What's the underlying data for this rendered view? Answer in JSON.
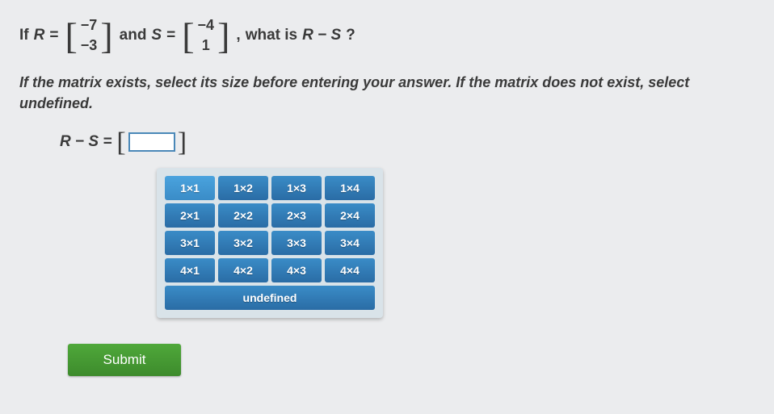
{
  "question": {
    "if_text": "If",
    "var_r": "R",
    "eq": "=",
    "matrix_r": [
      "−7",
      "−3"
    ],
    "and_text": "and",
    "var_s": "S",
    "matrix_s": [
      "−4",
      "1"
    ],
    "comma": ",",
    "what_text": "what is",
    "expr": "R − S",
    "qmark": "?"
  },
  "instruction": "If the matrix exists, select its size before entering your answer. If the matrix does not exist, select undefined.",
  "answer": {
    "label": "R − S =",
    "input_value": ""
  },
  "size_selector": {
    "rows": [
      [
        "1×1",
        "1×2",
        "1×3",
        "1×4"
      ],
      [
        "2×1",
        "2×2",
        "2×3",
        "2×4"
      ],
      [
        "3×1",
        "3×2",
        "3×3",
        "3×4"
      ],
      [
        "4×1",
        "4×2",
        "4×3",
        "4×4"
      ]
    ],
    "selected": "1×1",
    "undefined_label": "undefined",
    "colors": {
      "btn_bg_top": "#3a8cc7",
      "btn_bg_bottom": "#2a6ca5",
      "panel_bg": "#d9e3e9"
    }
  },
  "submit": {
    "label": "Submit",
    "bg_top": "#4fa83a",
    "bg_bottom": "#3d8b2c"
  },
  "page": {
    "bg_color": "#ebecee",
    "text_color": "#3a3a3a"
  }
}
